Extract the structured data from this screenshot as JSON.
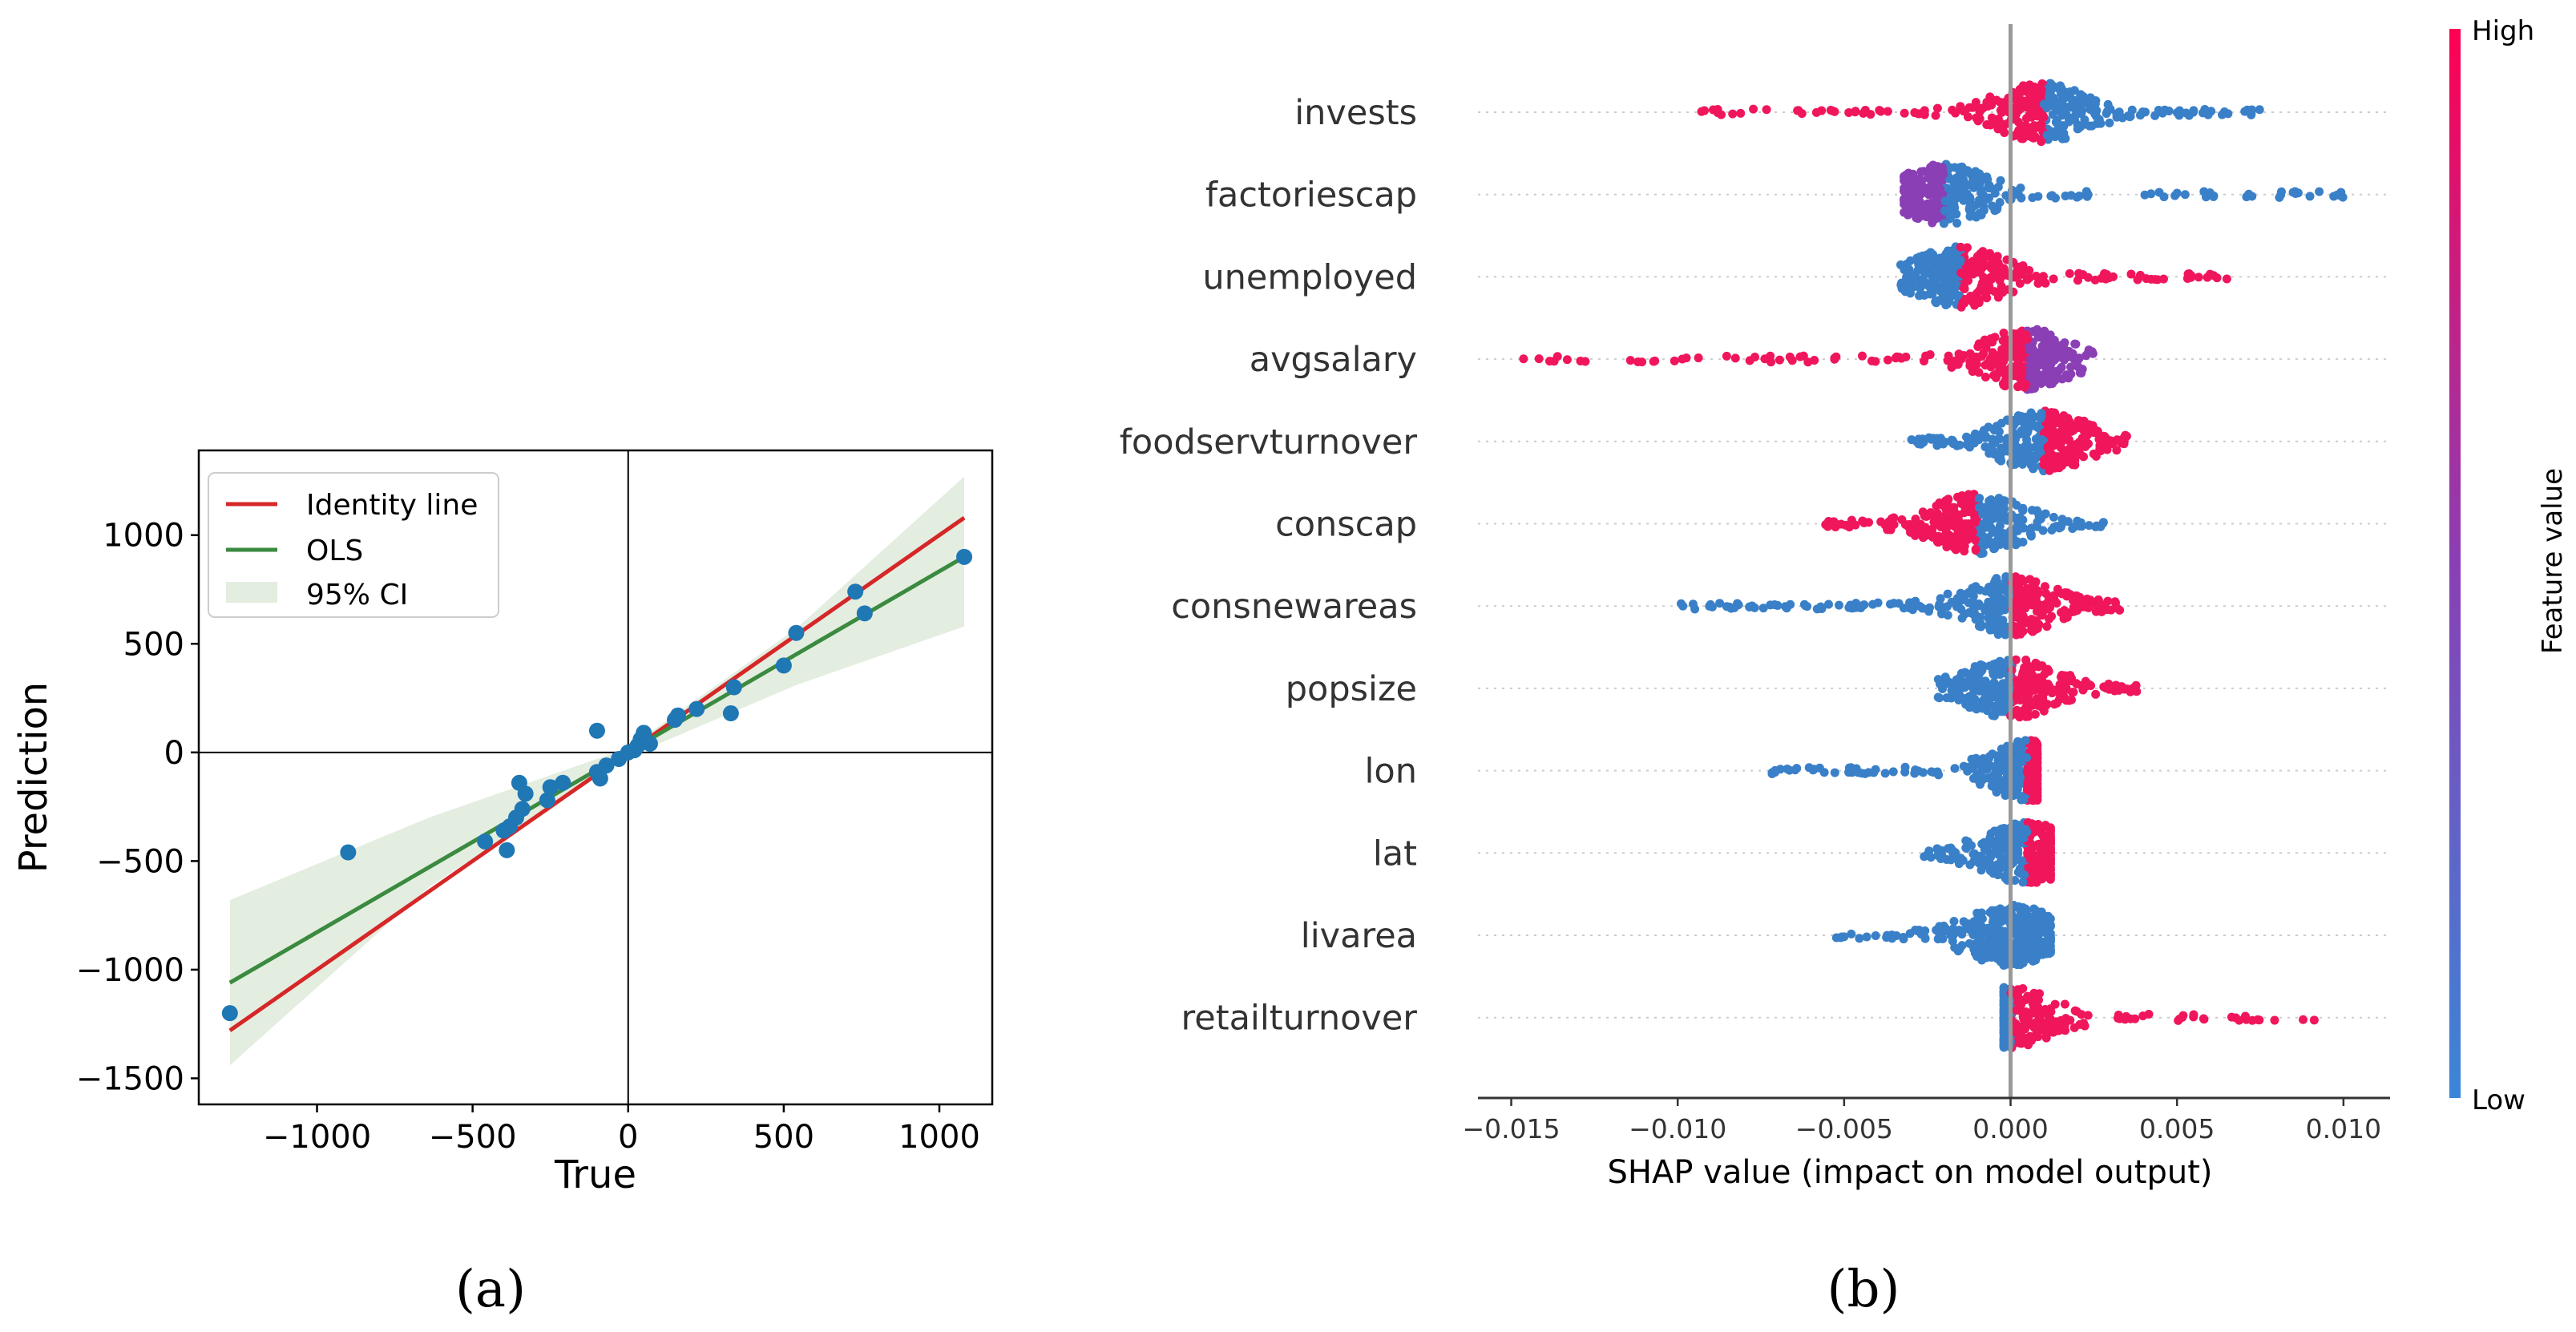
{
  "chart_data": [
    {
      "panel": "(a)",
      "type": "scatter",
      "xlabel": "True",
      "ylabel": "Prediction",
      "xlim": [
        -1380,
        1170
      ],
      "ylim": [
        -1620,
        1390
      ],
      "xticks": [
        -1000,
        -500,
        0,
        500,
        1000
      ],
      "xtick_labels": [
        "−1000",
        "−500",
        "0",
        "500",
        "1000"
      ],
      "yticks": [
        -1500,
        -1000,
        -500,
        0,
        500,
        1000
      ],
      "ytick_labels": [
        "−1500",
        "−1000",
        "−500",
        "0",
        "500",
        "1000"
      ],
      "legend": [
        "Identity line",
        "OLS",
        "95% CI"
      ],
      "legend_position": "top-left",
      "colors": {
        "points": "#1f77b4",
        "identity": "#d62728",
        "ols": "#3a8a3f",
        "ci": "#e3ede0"
      },
      "points": [
        [
          -1280,
          -1200
        ],
        [
          -900,
          -460
        ],
        [
          -460,
          -410
        ],
        [
          -400,
          -360
        ],
        [
          -380,
          -340
        ],
        [
          -390,
          -450
        ],
        [
          -360,
          -300
        ],
        [
          -340,
          -260
        ],
        [
          -350,
          -140
        ],
        [
          -330,
          -190
        ],
        [
          -260,
          -220
        ],
        [
          -250,
          -160
        ],
        [
          -210,
          -140
        ],
        [
          -100,
          -90
        ],
        [
          -90,
          -120
        ],
        [
          -100,
          100
        ],
        [
          -70,
          -60
        ],
        [
          -30,
          -30
        ],
        [
          0,
          0
        ],
        [
          20,
          10
        ],
        [
          30,
          30
        ],
        [
          40,
          60
        ],
        [
          50,
          90
        ],
        [
          70,
          40
        ],
        [
          150,
          150
        ],
        [
          160,
          170
        ],
        [
          220,
          200
        ],
        [
          330,
          180
        ],
        [
          340,
          300
        ],
        [
          500,
          400
        ],
        [
          540,
          550
        ],
        [
          730,
          740
        ],
        [
          760,
          640
        ],
        [
          1080,
          900
        ]
      ],
      "identity_line": [
        [
          -1280,
          -1280
        ],
        [
          1080,
          1080
        ]
      ],
      "ols_line": [
        [
          -1280,
          -1060
        ],
        [
          1080,
          900
        ]
      ],
      "ci_band": {
        "x": [
          -1280,
          -640,
          0,
          540,
          1080
        ],
        "lower": [
          -1440,
          -620,
          -20,
          310,
          580
        ],
        "upper": [
          -680,
          -300,
          20,
          570,
          1270
        ]
      }
    },
    {
      "panel": "(b)",
      "type": "scatter",
      "subtype": "shap-beeswarm",
      "xlabel": "SHAP value (impact on model output)",
      "xlim": [
        -0.016,
        0.0114
      ],
      "xticks": [
        -0.015,
        -0.01,
        -0.005,
        0.0,
        0.005,
        0.01
      ],
      "xtick_labels": [
        "−0.015",
        "−0.010",
        "−0.005",
        "0.000",
        "0.005",
        "0.010"
      ],
      "colorbar": {
        "label": "Feature value",
        "high": "High",
        "low": "Low",
        "high_color": "#ff0052",
        "low_color": "#008bfb"
      },
      "features": [
        {
          "name": "invests",
          "min": -0.0095,
          "max": 0.0075,
          "center": 0.001,
          "neg_color": "high",
          "pos_color": "low"
        },
        {
          "name": "factoriescap",
          "min": -0.0032,
          "max": 0.0102,
          "center": -0.002,
          "neg_color": "mid",
          "pos_color": "low"
        },
        {
          "name": "unemployed",
          "min": -0.0033,
          "max": 0.007,
          "center": -0.0015,
          "neg_color": "low",
          "pos_color": "high"
        },
        {
          "name": "avgsalary",
          "min": -0.0148,
          "max": 0.0025,
          "center": 0.0005,
          "neg_color": "high",
          "pos_color": "mid"
        },
        {
          "name": "foodservturnover",
          "min": -0.003,
          "max": 0.0035,
          "center": 0.001,
          "neg_color": "low",
          "pos_color": "high"
        },
        {
          "name": "conscap",
          "min": -0.0058,
          "max": 0.0028,
          "center": -0.001,
          "neg_color": "high",
          "pos_color": "low"
        },
        {
          "name": "consnewareas",
          "min": -0.01,
          "max": 0.0035,
          "center": 0.0,
          "neg_color": "low",
          "pos_color": "high"
        },
        {
          "name": "popsize",
          "min": -0.0022,
          "max": 0.0038,
          "center": 0.0,
          "neg_color": "low",
          "pos_color": "high"
        },
        {
          "name": "lon",
          "min": -0.0072,
          "max": 0.0008,
          "center": 0.0005,
          "neg_color": "low",
          "pos_color": "high"
        },
        {
          "name": "lat",
          "min": -0.0027,
          "max": 0.0012,
          "center": 0.0005,
          "neg_color": "low",
          "pos_color": "high"
        },
        {
          "name": "livarea",
          "min": -0.0053,
          "max": 0.0012,
          "center": 0.0,
          "neg_color": "low",
          "pos_color": "low"
        },
        {
          "name": "retailturnover",
          "min": -0.0002,
          "max": 0.0097,
          "center": 0.0,
          "neg_color": "low",
          "pos_color": "high"
        }
      ]
    }
  ]
}
